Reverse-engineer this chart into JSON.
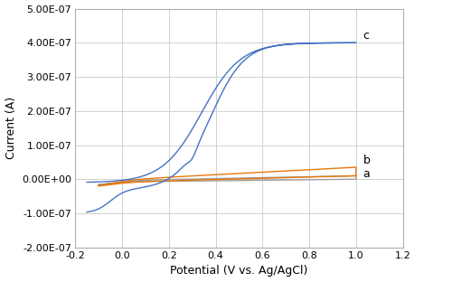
{
  "title": "",
  "xlabel": "Potential (V vs. Ag/AgCl)",
  "ylabel": "Current (A)",
  "xlim": [
    -0.2,
    1.2
  ],
  "ylim": [
    -2e-07,
    5e-07
  ],
  "xticks": [
    -0.2,
    0.0,
    0.2,
    0.4,
    0.6,
    0.8,
    1.0,
    1.2
  ],
  "yticks": [
    -2e-07,
    -1e-07,
    0.0,
    1e-07,
    2e-07,
    3e-07,
    4e-07,
    5e-07
  ],
  "grid_color": "#d0d0d0",
  "background_color": "#ffffff",
  "curve_a_color": "#9E9E9E",
  "curve_b_color": "#E8780A",
  "curve_c_color": "#4472C4",
  "label_a": "a",
  "label_b": "b",
  "label_c": "c"
}
